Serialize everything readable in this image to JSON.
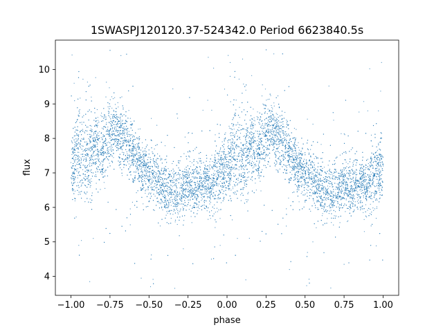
{
  "chart_data": {
    "type": "scatter",
    "title": "1SWASPJ120120.37-524342.0 Period 6623840.5s",
    "xlabel": "phase",
    "ylabel": "flux",
    "xlim": [
      -1.1,
      1.1
    ],
    "ylim": [
      3.45,
      10.85
    ],
    "x_ticks": [
      -1.0,
      -0.75,
      -0.5,
      -0.25,
      0.0,
      0.25,
      0.5,
      0.75,
      1.0
    ],
    "x_tick_labels": [
      "−1.00",
      "−0.75",
      "−0.50",
      "−0.25",
      "0.00",
      "0.25",
      "0.50",
      "0.75",
      "1.00"
    ],
    "y_ticks": [
      4,
      5,
      6,
      7,
      8,
      9,
      10
    ],
    "y_tick_labels": [
      "4",
      "5",
      "6",
      "7",
      "8",
      "9",
      "10"
    ],
    "grid": false,
    "marker_color": "#1f77b4",
    "series": [
      {
        "phase_profile": {
          "phase": [
            0.0,
            0.05,
            0.1,
            0.15,
            0.2,
            0.25,
            0.3,
            0.35,
            0.4,
            0.45,
            0.5,
            0.55,
            0.6,
            0.65,
            0.7,
            0.75,
            0.8,
            0.85,
            0.9,
            0.95,
            1.0
          ],
          "median_flux": [
            7.2,
            7.6,
            7.4,
            7.8,
            7.6,
            8.1,
            8.2,
            7.9,
            7.5,
            7.2,
            7.0,
            6.8,
            6.6,
            6.5,
            6.4,
            6.7,
            6.6,
            6.7,
            6.7,
            6.9,
            7.2
          ],
          "flux_scatter": [
            0.45,
            0.6,
            0.7,
            0.65,
            0.55,
            0.5,
            0.45,
            0.45,
            0.4,
            0.4,
            0.4,
            0.4,
            0.4,
            0.42,
            0.42,
            0.4,
            0.4,
            0.4,
            0.45,
            0.45,
            0.45
          ]
        },
        "points_sample": [
          [
            -1.0,
            7.3
          ],
          [
            -0.98,
            9.6
          ],
          [
            -0.96,
            8.1
          ],
          [
            -0.93,
            6.8
          ],
          [
            -0.9,
            7.9
          ],
          [
            -0.87,
            9.2
          ],
          [
            -0.84,
            8.6
          ],
          [
            -0.82,
            7.1
          ],
          [
            -0.8,
            8.3
          ],
          [
            -0.77,
            7.8
          ],
          [
            -0.75,
            8.0
          ],
          [
            -0.73,
            8.5
          ],
          [
            -0.7,
            8.1
          ],
          [
            -0.68,
            7.7
          ],
          [
            -0.65,
            7.5
          ],
          [
            -0.62,
            7.6
          ],
          [
            -0.6,
            7.4
          ],
          [
            -0.56,
            7.2
          ],
          [
            -0.53,
            7.1
          ],
          [
            -0.5,
            6.9
          ],
          [
            -0.47,
            7.0
          ],
          [
            -0.44,
            6.8
          ],
          [
            -0.41,
            6.7
          ],
          [
            -0.38,
            6.5
          ],
          [
            -0.35,
            6.6
          ],
          [
            -0.32,
            6.3
          ],
          [
            -0.3,
            5.9
          ],
          [
            -0.28,
            6.5
          ],
          [
            -0.25,
            6.6
          ],
          [
            -0.22,
            6.5
          ],
          [
            -0.19,
            6.7
          ],
          [
            -0.16,
            6.6
          ],
          [
            -0.13,
            6.8
          ],
          [
            -0.1,
            6.7
          ],
          [
            -0.07,
            6.9
          ],
          [
            -0.04,
            7.1
          ],
          [
            -0.01,
            7.3
          ],
          [
            0.0,
            7.2
          ],
          [
            0.02,
            9.8
          ],
          [
            0.05,
            7.5
          ],
          [
            0.08,
            8.9
          ],
          [
            0.1,
            7.4
          ],
          [
            0.12,
            9.4
          ],
          [
            0.15,
            7.8
          ],
          [
            0.18,
            8.4
          ],
          [
            0.2,
            7.6
          ],
          [
            0.23,
            9.0
          ],
          [
            0.25,
            8.1
          ],
          [
            0.27,
            8.4
          ],
          [
            0.3,
            8.2
          ],
          [
            0.33,
            7.9
          ],
          [
            0.36,
            7.8
          ],
          [
            0.39,
            7.5
          ],
          [
            0.42,
            7.3
          ],
          [
            0.45,
            7.2
          ],
          [
            0.48,
            7.0
          ],
          [
            0.5,
            7.0
          ],
          [
            0.53,
            6.8
          ],
          [
            0.56,
            6.7
          ],
          [
            0.59,
            6.6
          ],
          [
            0.62,
            6.5
          ],
          [
            0.65,
            6.4
          ],
          [
            0.68,
            6.1
          ],
          [
            0.7,
            6.3
          ],
          [
            0.73,
            6.6
          ],
          [
            0.76,
            6.7
          ],
          [
            0.79,
            6.6
          ],
          [
            0.82,
            6.5
          ],
          [
            0.85,
            6.7
          ],
          [
            0.88,
            6.6
          ],
          [
            0.91,
            6.8
          ],
          [
            0.94,
            6.9
          ],
          [
            0.97,
            8.8
          ],
          [
            1.0,
            7.2
          ],
          [
            -0.55,
            3.95
          ],
          [
            -0.88,
            3.85
          ],
          [
            0.4,
            4.2
          ],
          [
            0.12,
            3.9
          ],
          [
            -0.1,
            4.5
          ],
          [
            0.75,
            4.35
          ],
          [
            0.1,
            10.3
          ],
          [
            -0.68,
            10.4
          ],
          [
            0.02,
            10.2
          ],
          [
            0.99,
            10.2
          ],
          [
            -0.12,
            10.35
          ],
          [
            0.3,
            10.45
          ],
          [
            -0.28,
            4.8
          ],
          [
            0.55,
            5.0
          ],
          [
            -0.95,
            4.9
          ],
          [
            0.88,
            5.3
          ]
        ]
      }
    ]
  }
}
